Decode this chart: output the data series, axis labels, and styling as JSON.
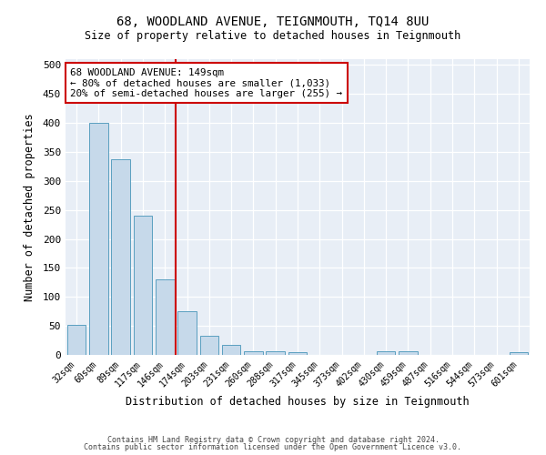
{
  "title1": "68, WOODLAND AVENUE, TEIGNMOUTH, TQ14 8UU",
  "title2": "Size of property relative to detached houses in Teignmouth",
  "xlabel": "Distribution of detached houses by size in Teignmouth",
  "ylabel": "Number of detached properties",
  "categories": [
    "32sqm",
    "60sqm",
    "89sqm",
    "117sqm",
    "146sqm",
    "174sqm",
    "203sqm",
    "231sqm",
    "260sqm",
    "288sqm",
    "317sqm",
    "345sqm",
    "373sqm",
    "402sqm",
    "430sqm",
    "459sqm",
    "487sqm",
    "516sqm",
    "544sqm",
    "573sqm",
    "601sqm"
  ],
  "values": [
    52,
    400,
    338,
    240,
    130,
    75,
    33,
    18,
    7,
    7,
    5,
    0,
    0,
    0,
    6,
    6,
    0,
    0,
    0,
    0,
    5
  ],
  "bar_color": "#c6d9ea",
  "bar_edge_color": "#5a9fc0",
  "red_line_x": 4.5,
  "annotation_text": "68 WOODLAND AVENUE: 149sqm\n← 80% of detached houses are smaller (1,033)\n20% of semi-detached houses are larger (255) →",
  "annotation_box_color": "#ffffff",
  "annotation_box_edge": "#cc0000",
  "footer1": "Contains HM Land Registry data © Crown copyright and database right 2024.",
  "footer2": "Contains public sector information licensed under the Open Government Licence v3.0.",
  "bg_color": "#e8eef6",
  "ylim": [
    0,
    510
  ],
  "yticks": [
    0,
    50,
    100,
    150,
    200,
    250,
    300,
    350,
    400,
    450,
    500
  ]
}
